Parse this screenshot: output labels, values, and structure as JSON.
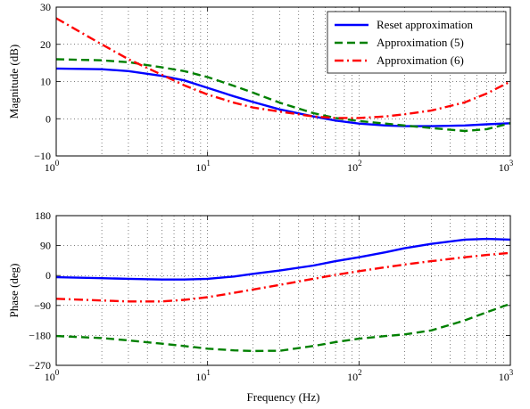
{
  "chart_data": [
    {
      "type": "line",
      "xscale": "log",
      "xlim": [
        1,
        1000
      ],
      "ylim": [
        -10,
        30
      ],
      "ylabel": "Magnitude (dB)",
      "xlabel": "",
      "grid": true,
      "legend_position": "top-right",
      "xticks": [
        {
          "base": "10",
          "exp": "0",
          "value": 1
        },
        {
          "base": "10",
          "exp": "1",
          "value": 10
        },
        {
          "base": "10",
          "exp": "2",
          "value": 100
        },
        {
          "base": "10",
          "exp": "3",
          "value": 1000
        }
      ],
      "yticks": [
        {
          "label": "−10",
          "value": -10
        },
        {
          "label": "0",
          "value": 0
        },
        {
          "label": "10",
          "value": 10
        },
        {
          "label": "20",
          "value": 20
        },
        {
          "label": "30",
          "value": 30
        }
      ],
      "series": [
        {
          "name": "Reset approximation",
          "color": "#0000ff",
          "style": "solid",
          "x": [
            1,
            2,
            3,
            5,
            7,
            10,
            15,
            20,
            30,
            50,
            70,
            100,
            150,
            200,
            300,
            500,
            700,
            1000
          ],
          "y": [
            13.5,
            13.3,
            12.8,
            11.5,
            10.3,
            8.3,
            6.0,
            4.5,
            2.5,
            0.6,
            -0.5,
            -1.3,
            -1.8,
            -2.0,
            -2.0,
            -1.8,
            -1.5,
            -1.2
          ]
        },
        {
          "name": "Approximation (5)",
          "color": "#008000",
          "style": "dashed",
          "x": [
            1,
            2,
            3,
            5,
            7,
            10,
            15,
            20,
            30,
            50,
            70,
            100,
            150,
            200,
            300,
            500,
            700,
            1000
          ],
          "y": [
            16.0,
            15.7,
            15.2,
            13.8,
            12.8,
            11.2,
            8.8,
            7.0,
            4.3,
            1.5,
            0.2,
            -0.6,
            -1.3,
            -1.8,
            -2.5,
            -3.3,
            -2.8,
            -1.2
          ]
        },
        {
          "name": "Approximation (6)",
          "color": "#ff0000",
          "style": "dashdot",
          "x": [
            1,
            2,
            3,
            5,
            7,
            10,
            15,
            20,
            30,
            50,
            70,
            100,
            150,
            200,
            300,
            500,
            700,
            1000
          ],
          "y": [
            27.0,
            20.0,
            16.0,
            11.8,
            9.0,
            6.5,
            4.3,
            3.0,
            1.9,
            0.6,
            0.2,
            0.2,
            0.6,
            1.2,
            2.2,
            4.4,
            6.8,
            10.0
          ]
        }
      ]
    },
    {
      "type": "line",
      "xscale": "log",
      "xlim": [
        1,
        1000
      ],
      "ylim": [
        -270,
        180
      ],
      "ylabel": "Phase (deg)",
      "xlabel": "Frequency (Hz)",
      "grid": true,
      "xticks": [
        {
          "base": "10",
          "exp": "0",
          "value": 1
        },
        {
          "base": "10",
          "exp": "1",
          "value": 10
        },
        {
          "base": "10",
          "exp": "2",
          "value": 100
        },
        {
          "base": "10",
          "exp": "3",
          "value": 1000
        }
      ],
      "yticks": [
        {
          "label": "−270",
          "value": -270
        },
        {
          "label": "−180",
          "value": -180
        },
        {
          "label": "−90",
          "value": -90
        },
        {
          "label": "0",
          "value": 0
        },
        {
          "label": "90",
          "value": 90
        },
        {
          "label": "180",
          "value": 180
        }
      ],
      "series": [
        {
          "name": "Reset approximation",
          "color": "#0000ff",
          "style": "solid",
          "x": [
            1,
            2,
            3,
            5,
            7,
            10,
            15,
            20,
            30,
            50,
            70,
            100,
            150,
            200,
            300,
            500,
            700,
            1000
          ],
          "y": [
            -5,
            -8,
            -10,
            -12,
            -12,
            -10,
            -3,
            5,
            15,
            30,
            43,
            55,
            70,
            82,
            95,
            108,
            110,
            108
          ]
        },
        {
          "name": "Approximation (5)",
          "color": "#008000",
          "style": "dashed",
          "x": [
            1,
            2,
            3,
            5,
            7,
            10,
            15,
            20,
            30,
            50,
            70,
            100,
            150,
            200,
            300,
            500,
            700,
            1000
          ],
          "y": [
            -182,
            -188,
            -195,
            -205,
            -212,
            -220,
            -225,
            -227,
            -226,
            -212,
            -200,
            -190,
            -182,
            -177,
            -165,
            -135,
            -110,
            -85
          ]
        },
        {
          "name": "Approximation (6)",
          "color": "#ff0000",
          "style": "dashdot",
          "x": [
            1,
            2,
            3,
            5,
            7,
            10,
            15,
            20,
            30,
            50,
            70,
            100,
            150,
            200,
            300,
            500,
            700,
            1000
          ],
          "y": [
            -70,
            -75,
            -78,
            -78,
            -73,
            -65,
            -52,
            -42,
            -28,
            -10,
            2,
            13,
            25,
            33,
            43,
            55,
            62,
            68
          ]
        }
      ]
    }
  ]
}
